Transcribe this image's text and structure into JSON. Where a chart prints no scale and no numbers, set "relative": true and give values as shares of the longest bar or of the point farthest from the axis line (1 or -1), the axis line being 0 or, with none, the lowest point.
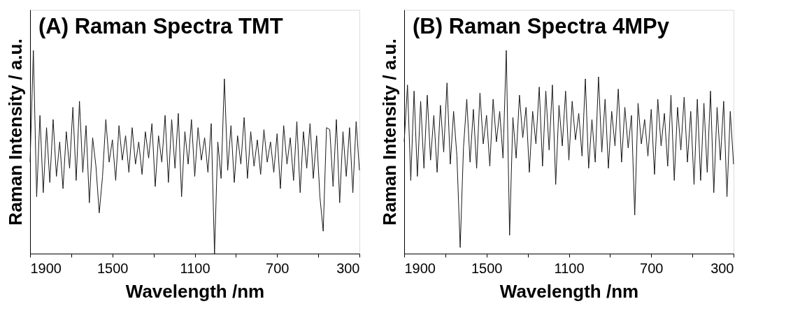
{
  "chart_data": [
    {
      "type": "line",
      "title": "(A) Raman Spectra TMT",
      "xlabel": "Wavelength /nm",
      "ylabel": "Raman Intensity / a.u.",
      "relative": true,
      "xlim": [
        1900,
        300
      ],
      "xticks": [
        1900,
        {
          "value": 1700,
          "label": null
        },
        1500,
        {
          "value": 1300,
          "label": null
        },
        1100,
        {
          "value": 900,
          "label": null
        },
        700,
        {
          "value": 500,
          "label": null
        },
        300
      ],
      "series": [
        {
          "color": "#1a1a1a",
          "x": [
            1900,
            1884,
            1868,
            1852,
            1836,
            1820,
            1804,
            1788,
            1772,
            1756,
            1740,
            1724,
            1708,
            1692,
            1676,
            1660,
            1644,
            1628,
            1612,
            1596,
            1580,
            1564,
            1548,
            1532,
            1516,
            1500,
            1484,
            1468,
            1452,
            1436,
            1420,
            1404,
            1388,
            1372,
            1356,
            1340,
            1324,
            1308,
            1292,
            1276,
            1260,
            1244,
            1228,
            1212,
            1196,
            1180,
            1164,
            1148,
            1132,
            1116,
            1100,
            1084,
            1068,
            1052,
            1036,
            1020,
            1004,
            988,
            972,
            956,
            940,
            924,
            908,
            892,
            876,
            860,
            844,
            828,
            812,
            796,
            780,
            764,
            748,
            732,
            716,
            700,
            684,
            668,
            652,
            636,
            620,
            604,
            588,
            572,
            556,
            540,
            524,
            508,
            492,
            476,
            460,
            444,
            428,
            412,
            396,
            380,
            364,
            348,
            332,
            316,
            300
          ],
          "values": [
            0.45,
            1.0,
            0.28,
            0.68,
            0.3,
            0.62,
            0.35,
            0.66,
            0.38,
            0.55,
            0.32,
            0.6,
            0.42,
            0.72,
            0.36,
            0.75,
            0.4,
            0.63,
            0.25,
            0.57,
            0.43,
            0.2,
            0.38,
            0.66,
            0.45,
            0.56,
            0.36,
            0.63,
            0.46,
            0.58,
            0.4,
            0.62,
            0.44,
            0.55,
            0.39,
            0.6,
            0.47,
            0.64,
            0.33,
            0.58,
            0.45,
            0.68,
            0.35,
            0.66,
            0.42,
            0.69,
            0.28,
            0.6,
            0.44,
            0.66,
            0.38,
            0.62,
            0.46,
            0.57,
            0.4,
            0.64,
            0.0,
            0.55,
            0.37,
            0.86,
            0.41,
            0.63,
            0.35,
            0.58,
            0.44,
            0.67,
            0.37,
            0.6,
            0.43,
            0.56,
            0.39,
            0.61,
            0.45,
            0.55,
            0.4,
            0.59,
            0.32,
            0.63,
            0.44,
            0.57,
            0.36,
            0.65,
            0.3,
            0.6,
            0.42,
            0.64,
            0.37,
            0.58,
            0.28,
            0.11,
            0.62,
            0.61,
            0.33,
            0.66,
            0.25,
            0.6,
            0.38,
            0.62,
            0.3,
            0.65,
            0.41
          ]
        }
      ]
    },
    {
      "type": "line",
      "title": "(B) Raman Spectra 4MPy",
      "xlabel": "Wavelength /nm",
      "ylabel": "Raman Intensity / a.u.",
      "relative": true,
      "xlim": [
        1900,
        300
      ],
      "xticks": [
        1900,
        {
          "value": 1700,
          "label": null
        },
        1500,
        {
          "value": 1300,
          "label": null
        },
        1100,
        {
          "value": 900,
          "label": null
        },
        700,
        {
          "value": 500,
          "label": null
        },
        300
      ],
      "series": [
        {
          "color": "#1a1a1a",
          "x": [
            1900,
            1884,
            1868,
            1852,
            1836,
            1820,
            1804,
            1788,
            1772,
            1756,
            1740,
            1724,
            1708,
            1692,
            1676,
            1660,
            1644,
            1628,
            1612,
            1596,
            1580,
            1564,
            1548,
            1532,
            1516,
            1500,
            1484,
            1468,
            1452,
            1436,
            1420,
            1404,
            1388,
            1372,
            1356,
            1340,
            1324,
            1308,
            1292,
            1276,
            1260,
            1244,
            1228,
            1212,
            1196,
            1180,
            1164,
            1148,
            1132,
            1116,
            1100,
            1084,
            1068,
            1052,
            1036,
            1020,
            1004,
            988,
            972,
            956,
            940,
            924,
            908,
            892,
            876,
            860,
            844,
            828,
            812,
            796,
            780,
            764,
            748,
            732,
            716,
            700,
            684,
            668,
            652,
            636,
            620,
            604,
            588,
            572,
            556,
            540,
            524,
            508,
            492,
            476,
            460,
            444,
            428,
            412,
            396,
            380,
            364,
            348,
            332,
            316,
            300
          ],
          "values": [
            0.55,
            0.83,
            0.36,
            0.8,
            0.38,
            0.75,
            0.42,
            0.78,
            0.46,
            0.68,
            0.4,
            0.73,
            0.5,
            0.84,
            0.44,
            0.7,
            0.48,
            0.03,
            0.52,
            0.76,
            0.45,
            0.71,
            0.42,
            0.79,
            0.54,
            0.68,
            0.43,
            0.76,
            0.55,
            0.7,
            0.47,
            1.0,
            0.09,
            0.67,
            0.47,
            0.78,
            0.57,
            0.72,
            0.4,
            0.7,
            0.54,
            0.82,
            0.43,
            0.8,
            0.51,
            0.83,
            0.34,
            0.73,
            0.53,
            0.8,
            0.46,
            0.75,
            0.56,
            0.69,
            0.48,
            0.86,
            0.42,
            0.66,
            0.45,
            0.87,
            0.5,
            0.76,
            0.42,
            0.7,
            0.53,
            0.81,
            0.45,
            0.72,
            0.52,
            0.68,
            0.19,
            0.74,
            0.54,
            0.66,
            0.48,
            0.71,
            0.39,
            0.76,
            0.53,
            0.69,
            0.43,
            0.78,
            0.36,
            0.72,
            0.51,
            0.77,
            0.45,
            0.7,
            0.34,
            0.76,
            0.36,
            0.74,
            0.4,
            0.8,
            0.3,
            0.72,
            0.46,
            0.75,
            0.28,
            0.7,
            0.44
          ]
        }
      ]
    }
  ]
}
